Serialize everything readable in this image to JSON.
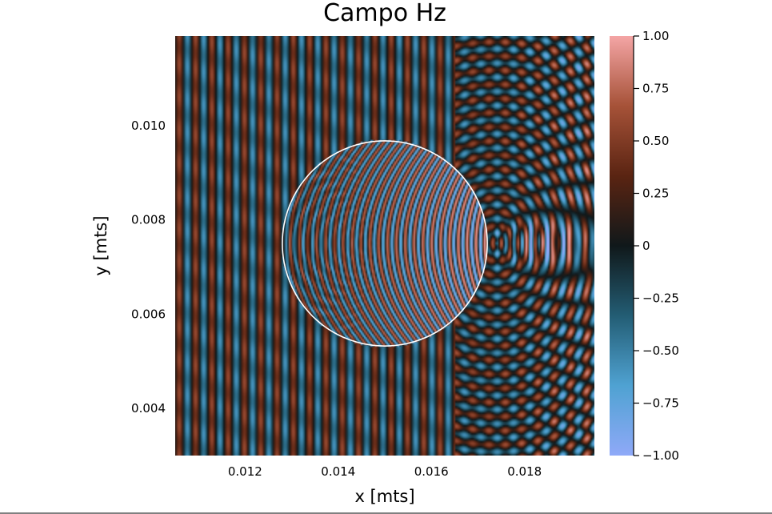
{
  "chart_data": {
    "type": "heatmap",
    "title": "Campo Hz",
    "xlabel": "x [mts]",
    "ylabel": "y [mts]",
    "xlim": [
      0.0105,
      0.0195
    ],
    "ylim": [
      0.003,
      0.0119
    ],
    "x_ticks": [
      {
        "value": 0.012,
        "label": "0.012"
      },
      {
        "value": 0.014,
        "label": "0.014"
      },
      {
        "value": 0.016,
        "label": "0.016"
      },
      {
        "value": 0.018,
        "label": "0.018"
      }
    ],
    "y_ticks": [
      {
        "value": 0.004,
        "label": "0.004"
      },
      {
        "value": 0.006,
        "label": "0.006"
      },
      {
        "value": 0.008,
        "label": "0.008"
      },
      {
        "value": 0.01,
        "label": "0.010"
      }
    ],
    "colorbar": {
      "range": [
        -1.0,
        1.0
      ],
      "ticks": [
        {
          "value": 1.0,
          "label": "1.00"
        },
        {
          "value": 0.75,
          "label": "0.75"
        },
        {
          "value": 0.5,
          "label": "0.50"
        },
        {
          "value": 0.25,
          "label": "0.25"
        },
        {
          "value": 0.0,
          "label": "0"
        },
        {
          "value": -0.25,
          "label": "−0.25"
        },
        {
          "value": -0.5,
          "label": "−0.50"
        },
        {
          "value": -0.75,
          "label": "−0.75"
        },
        {
          "value": -1.0,
          "label": "−1.00"
        }
      ],
      "colors": [
        "#8fa9f8",
        "#4fa2d2",
        "#235d74",
        "#10181a",
        "#5a2412",
        "#a65238",
        "#f4a5a5"
      ]
    },
    "annotations": [
      {
        "type": "circle",
        "center": [
          0.015,
          0.0075
        ],
        "radius": 0.0022,
        "color": "#ffffff"
      }
    ],
    "grid": false,
    "legend": "none"
  }
}
